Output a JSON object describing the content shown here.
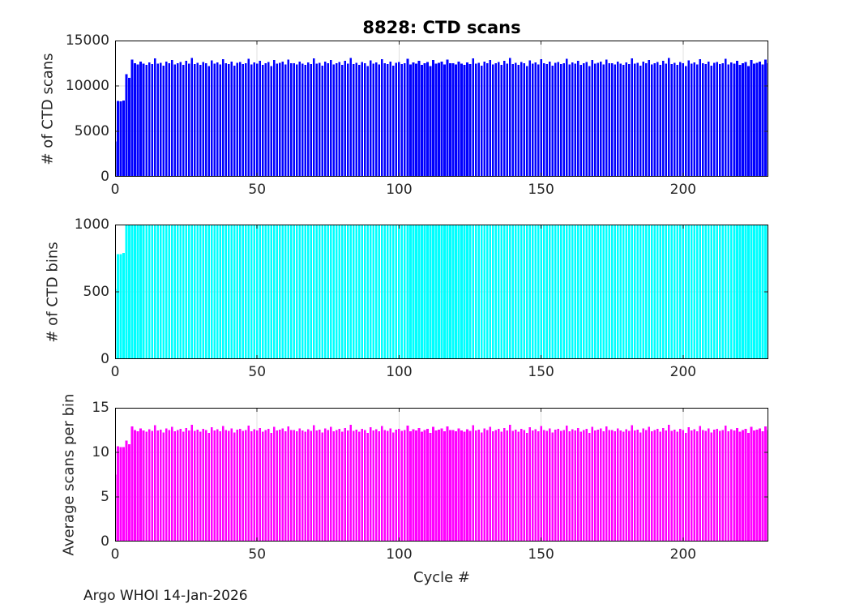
{
  "title": "8828: CTD scans",
  "footer": "Argo WHOI 14-Jan-2026",
  "colors": {
    "background": "#ffffff",
    "axis": "#262626",
    "border": "#000000",
    "grid": "#e0e0e0",
    "scans_bar": "#0000ff",
    "bins_bar": "#00ffff",
    "avg_bar": "#ff00ff"
  },
  "chart_data": [
    {
      "type": "bar",
      "title": "8828: CTD scans",
      "ylabel": "# of CTD scans",
      "bar_color": "#0000ff",
      "ylim": [
        0,
        15000
      ],
      "yticks": [
        0,
        5000,
        10000,
        15000
      ],
      "xlim": [
        0,
        230
      ],
      "xticks": [
        0,
        50,
        100,
        150,
        200
      ],
      "grid": true,
      "first_cycle": 0,
      "values": [
        3900,
        8350,
        8300,
        8400,
        11300,
        10900,
        12900,
        12500,
        12350,
        12700,
        12450,
        12300,
        12600,
        12400,
        13050,
        12450,
        12550,
        12250,
        12700,
        12500,
        12850,
        12350,
        12500,
        12650,
        12300,
        12750,
        12450,
        13100,
        12400,
        12550,
        12300,
        12650,
        12500,
        12200,
        12800,
        12450,
        12600,
        12350,
        12950,
        12500,
        12400,
        12700,
        12250,
        12550,
        12650,
        12400,
        12500,
        13000,
        12350,
        12600,
        12450,
        12750,
        12300,
        12500,
        12650,
        12200,
        12850,
        12450,
        12550,
        12700,
        12350,
        12900,
        12500,
        12500,
        12350,
        12700,
        12450,
        12300,
        12600,
        12400,
        13050,
        12450,
        12550,
        12250,
        12700,
        12500,
        12850,
        12350,
        12500,
        12650,
        12300,
        12750,
        12450,
        13100,
        12400,
        12550,
        12300,
        12650,
        12500,
        12200,
        12800,
        12450,
        12600,
        12350,
        12950,
        12500,
        12400,
        12700,
        12250,
        12550,
        12650,
        12400,
        12500,
        13000,
        12350,
        12600,
        12450,
        12750,
        12300,
        12500,
        12650,
        12200,
        12850,
        12450,
        12550,
        12700,
        12350,
        12900,
        12500,
        12500,
        12350,
        12700,
        12450,
        12300,
        12600,
        12400,
        13050,
        12450,
        12550,
        12250,
        12700,
        12500,
        12850,
        12350,
        12500,
        12650,
        12300,
        12750,
        12450,
        13100,
        12400,
        12550,
        12300,
        12650,
        12500,
        12200,
        12800,
        12450,
        12600,
        12350,
        12950,
        12500,
        12400,
        12700,
        12250,
        12550,
        12650,
        12400,
        12500,
        13000,
        12350,
        12600,
        12450,
        12750,
        12300,
        12500,
        12650,
        12200,
        12850,
        12450,
        12550,
        12700,
        12350,
        12900,
        12500,
        12500,
        12350,
        12700,
        12450,
        12300,
        12600,
        12400,
        13050,
        12450,
        12550,
        12250,
        12700,
        12500,
        12850,
        12350,
        12500,
        12650,
        12300,
        12750,
        12450,
        13100,
        12400,
        12550,
        12300,
        12650,
        12500,
        12200,
        12800,
        12450,
        12600,
        12350,
        12950,
        12500,
        12400,
        12700,
        12250,
        12550,
        12650,
        12400,
        12500,
        13000,
        12350,
        12600,
        12450,
        12750,
        12300,
        12500,
        12650,
        12200,
        12850,
        12450,
        12550,
        12700,
        12350,
        12900,
        12500
      ]
    },
    {
      "type": "bar",
      "ylabel": "# of CTD bins",
      "bar_color": "#00ffff",
      "ylim": [
        0,
        1000
      ],
      "yticks": [
        0,
        500,
        1000
      ],
      "xlim": [
        0,
        230
      ],
      "xticks": [
        0,
        50,
        100,
        150,
        200
      ],
      "grid": true,
      "first_cycle": 0,
      "values": [
        520,
        780,
        780,
        790,
        1000,
        1000,
        1000,
        1000,
        1000,
        1000,
        1000,
        1000,
        1000,
        1000,
        1000,
        1000,
        1000,
        1000,
        1000,
        1000,
        1000,
        1000,
        1000,
        1000,
        1000,
        1000,
        1000,
        1000,
        1000,
        1000,
        1000,
        1000,
        1000,
        1000,
        1000,
        1000,
        1000,
        1000,
        1000,
        1000,
        1000,
        1000,
        1000,
        1000,
        1000,
        1000,
        1000,
        1000,
        1000,
        1000,
        1000,
        1000,
        1000,
        1000,
        1000,
        1000,
        1000,
        1000,
        1000,
        1000,
        1000,
        1000,
        1000,
        1000,
        1000,
        1000,
        1000,
        1000,
        1000,
        1000,
        1000,
        1000,
        1000,
        1000,
        1000,
        1000,
        1000,
        1000,
        1000,
        1000,
        1000,
        1000,
        1000,
        1000,
        1000,
        1000,
        1000,
        1000,
        1000,
        1000,
        1000,
        1000,
        1000,
        1000,
        1000,
        1000,
        1000,
        1000,
        1000,
        1000,
        1000,
        1000,
        1000,
        1000,
        1000,
        1000,
        1000,
        1000,
        1000,
        1000,
        1000,
        1000,
        1000,
        1000,
        1000,
        1000,
        1000,
        1000,
        1000,
        1000,
        1000,
        1000,
        1000,
        1000,
        1000,
        1000,
        1000,
        1000,
        1000,
        1000,
        1000,
        1000,
        1000,
        1000,
        1000,
        1000,
        1000,
        1000,
        1000,
        1000,
        1000,
        1000,
        1000,
        1000,
        1000,
        1000,
        1000,
        1000,
        1000,
        1000,
        1000,
        1000,
        1000,
        1000,
        1000,
        1000,
        1000,
        1000,
        1000,
        1000,
        1000,
        1000,
        1000,
        1000,
        1000,
        1000,
        1000,
        1000,
        1000,
        1000,
        1000,
        1000,
        1000,
        1000,
        1000,
        1000,
        1000,
        1000,
        1000,
        1000,
        1000,
        1000,
        1000,
        1000,
        1000,
        1000,
        1000,
        1000,
        1000,
        1000,
        1000,
        1000,
        1000,
        1000,
        1000,
        1000,
        1000,
        1000,
        1000,
        1000,
        1000,
        1000,
        1000,
        1000,
        1000,
        1000,
        1000,
        1000,
        1000,
        1000,
        1000,
        1000,
        1000,
        1000,
        1000,
        1000,
        1000,
        1000,
        1000,
        1000,
        1000,
        1000,
        1000,
        1000,
        1000,
        1000,
        1000,
        1000,
        1000,
        1000,
        1000
      ]
    },
    {
      "type": "bar",
      "ylabel": "Average scans per bin",
      "xlabel": "Cycle #",
      "bar_color": "#ff00ff",
      "ylim": [
        0,
        15
      ],
      "yticks": [
        0,
        5,
        10,
        15
      ],
      "xlim": [
        0,
        230
      ],
      "xticks": [
        0,
        50,
        100,
        150,
        200
      ],
      "grid": true,
      "first_cycle": 0,
      "values": [
        7.5,
        10.7,
        10.6,
        10.6,
        11.3,
        10.9,
        12.9,
        12.5,
        12.35,
        12.7,
        12.45,
        12.3,
        12.6,
        12.4,
        13.05,
        12.45,
        12.55,
        12.25,
        12.7,
        12.5,
        12.85,
        12.35,
        12.5,
        12.65,
        12.3,
        12.75,
        12.45,
        13.1,
        12.4,
        12.55,
        12.3,
        12.65,
        12.5,
        12.2,
        12.8,
        12.45,
        12.6,
        12.35,
        12.95,
        12.5,
        12.4,
        12.7,
        12.25,
        12.55,
        12.65,
        12.4,
        12.5,
        13.0,
        12.35,
        12.6,
        12.45,
        12.75,
        12.3,
        12.5,
        12.65,
        12.2,
        12.85,
        12.45,
        12.55,
        12.7,
        12.35,
        12.9,
        12.5,
        12.5,
        12.35,
        12.7,
        12.45,
        12.3,
        12.6,
        12.4,
        13.05,
        12.45,
        12.55,
        12.25,
        12.7,
        12.5,
        12.85,
        12.35,
        12.5,
        12.65,
        12.3,
        12.75,
        12.45,
        13.1,
        12.4,
        12.55,
        12.3,
        12.65,
        12.5,
        12.2,
        12.8,
        12.45,
        12.6,
        12.35,
        12.95,
        12.5,
        12.4,
        12.7,
        12.25,
        12.55,
        12.65,
        12.4,
        12.5,
        13.0,
        12.35,
        12.6,
        12.45,
        12.75,
        12.3,
        12.5,
        12.65,
        12.2,
        12.85,
        12.45,
        12.55,
        12.7,
        12.35,
        12.9,
        12.5,
        12.5,
        12.35,
        12.7,
        12.45,
        12.3,
        12.6,
        12.4,
        13.05,
        12.45,
        12.55,
        12.25,
        12.7,
        12.5,
        12.85,
        12.35,
        12.5,
        12.65,
        12.3,
        12.75,
        12.45,
        13.1,
        12.4,
        12.55,
        12.3,
        12.65,
        12.5,
        12.2,
        12.8,
        12.45,
        12.6,
        12.35,
        12.95,
        12.5,
        12.4,
        12.7,
        12.25,
        12.55,
        12.65,
        12.4,
        12.5,
        13.0,
        12.35,
        12.6,
        12.45,
        12.75,
        12.3,
        12.5,
        12.65,
        12.2,
        12.85,
        12.45,
        12.55,
        12.7,
        12.35,
        12.9,
        12.5,
        12.5,
        12.35,
        12.7,
        12.45,
        12.3,
        12.6,
        12.4,
        13.05,
        12.45,
        12.55,
        12.25,
        12.7,
        12.5,
        12.85,
        12.35,
        12.5,
        12.65,
        12.3,
        12.75,
        12.45,
        13.1,
        12.4,
        12.55,
        12.3,
        12.65,
        12.5,
        12.2,
        12.8,
        12.45,
        12.6,
        12.35,
        12.95,
        12.5,
        12.4,
        12.7,
        12.25,
        12.55,
        12.65,
        12.4,
        12.5,
        13.0,
        12.35,
        12.6,
        12.45,
        12.75,
        12.3,
        12.5,
        12.65,
        12.2,
        12.85,
        12.45,
        12.55,
        12.7,
        12.35,
        12.9,
        12.5
      ]
    }
  ]
}
